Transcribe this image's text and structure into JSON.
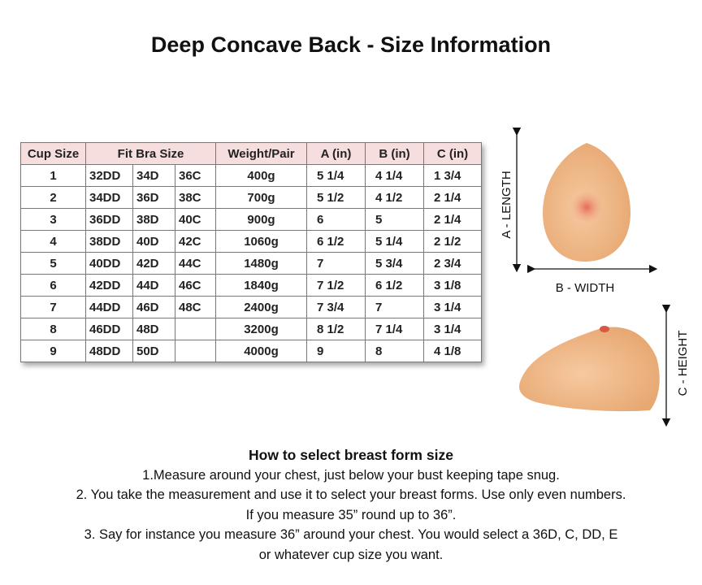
{
  "header": {
    "title": "Deep Concave Back - Size Information"
  },
  "table": {
    "headers": [
      "Cup Size",
      "Fit Bra Size",
      "Weight/Pair",
      "A (in)",
      "B (in)",
      "C (in)"
    ],
    "rows": [
      {
        "cup": "1",
        "bra": [
          "32DD",
          "34D",
          "36C"
        ],
        "weight": "400g",
        "a": "5 1/4",
        "b": "4 1/4",
        "c": "1 3/4"
      },
      {
        "cup": "2",
        "bra": [
          "34DD",
          "36D",
          "38C"
        ],
        "weight": "700g",
        "a": "5 1/2",
        "b": "4 1/2",
        "c": "2 1/4"
      },
      {
        "cup": "3",
        "bra": [
          "36DD",
          "38D",
          "40C"
        ],
        "weight": "900g",
        "a": "6",
        "b": "5",
        "c": "2 1/4"
      },
      {
        "cup": "4",
        "bra": [
          "38DD",
          "40D",
          "42C"
        ],
        "weight": "1060g",
        "a": "6 1/2",
        "b": "5 1/4",
        "c": "2 1/2"
      },
      {
        "cup": "5",
        "bra": [
          "40DD",
          "42D",
          "44C"
        ],
        "weight": "1480g",
        "a": "7",
        "b": "5 3/4",
        "c": "2 3/4"
      },
      {
        "cup": "6",
        "bra": [
          "42DD",
          "44D",
          "46C"
        ],
        "weight": "1840g",
        "a": "7 1/2",
        "b": "6 1/2",
        "c": "3 1/8"
      },
      {
        "cup": "7",
        "bra": [
          "44DD",
          "46D",
          "48C"
        ],
        "weight": "2400g",
        "a": "7 3/4",
        "b": "7",
        "c": "3 1/4"
      },
      {
        "cup": "8",
        "bra": [
          "46DD",
          "48D"
        ],
        "weight": "3200g",
        "a": "8 1/2",
        "b": "7 1/4",
        "c": "3 1/4"
      },
      {
        "cup": "9",
        "bra": [
          "48DD",
          "50D"
        ],
        "weight": "4000g",
        "a": "9",
        "b": "8",
        "c": "4 1/8"
      }
    ]
  },
  "diagram": {
    "length": "A - LENGTH",
    "width": "B - WIDTH",
    "height": "C - HEIGHT"
  },
  "instructions": {
    "heading": "How to select breast form size",
    "lines": [
      "1.Measure around your chest, just below your bust keeping tape snug.",
      "2. You take the measurement and use it to select your breast forms. Use only even numbers.",
      "If you measure 35” round up to 36”.",
      "3. Say for instance you measure 36” around your chest. You would select a 36D, C, DD, E",
      "or whatever cup size you want."
    ]
  }
}
